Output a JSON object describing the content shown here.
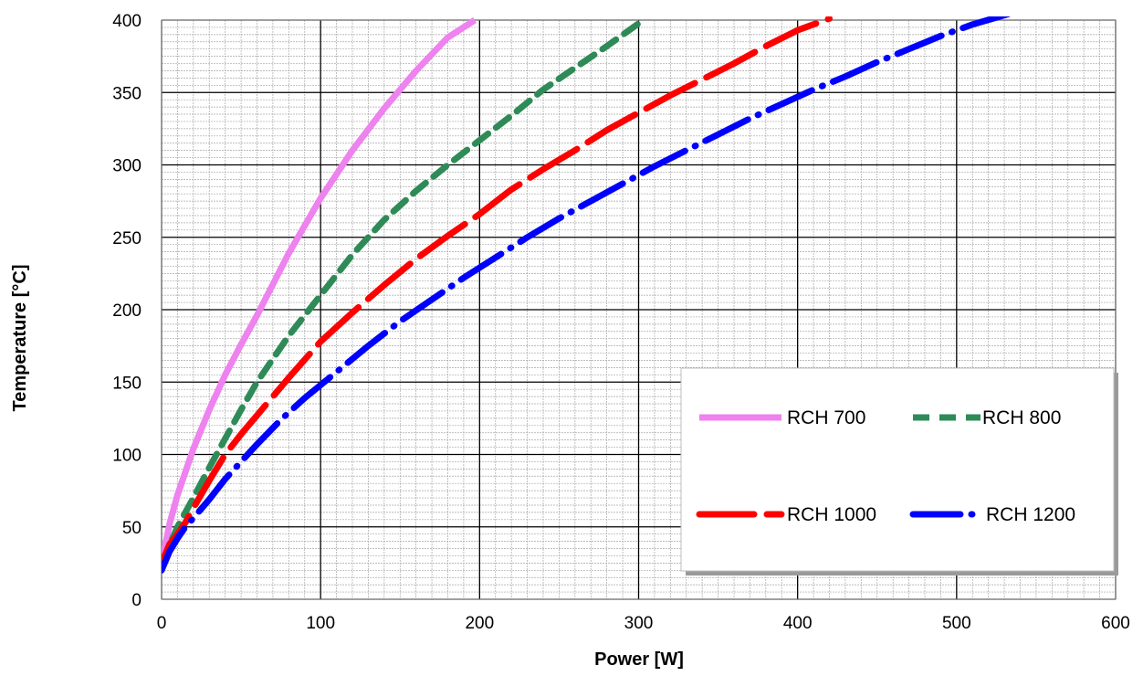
{
  "chart_data": {
    "type": "line",
    "title": "",
    "xlabel": "Power [W]",
    "ylabel": "Temperature [°C]",
    "xlim": [
      0,
      600
    ],
    "ylim": [
      0,
      400
    ],
    "xticks": [
      0,
      100,
      200,
      300,
      400,
      500,
      600
    ],
    "yticks": [
      0,
      50,
      100,
      150,
      200,
      250,
      300,
      350,
      400
    ],
    "grid": "major and minor",
    "legend": "bottom-right",
    "series": [
      {
        "name": "RCH 700",
        "color": "#ee82ee",
        "style": "solid",
        "x": [
          0,
          5,
          10,
          20,
          30,
          40,
          50,
          60,
          80,
          100,
          120,
          140,
          160,
          180,
          197
        ],
        "y": [
          25,
          52,
          72,
          104,
          131,
          155,
          176,
          196,
          239,
          277,
          310,
          339,
          365,
          388,
          400
        ]
      },
      {
        "name": "RCH 800",
        "color": "#2e8b57",
        "style": "dashed",
        "x": [
          0,
          10,
          20,
          30,
          40,
          50,
          60,
          80,
          100,
          120,
          140,
          160,
          180,
          200,
          220,
          240,
          260,
          280,
          303
        ],
        "y": [
          25,
          50,
          70,
          91,
          111,
          131,
          150,
          182,
          210,
          238,
          262,
          282,
          300,
          317,
          334,
          352,
          367,
          382,
          400
        ]
      },
      {
        "name": "RCH 1000",
        "color": "#ff0000",
        "style": "long-dash",
        "x": [
          0,
          5,
          10,
          15,
          20,
          30,
          40,
          50,
          60,
          80,
          100,
          120,
          140,
          160,
          180,
          200,
          220,
          240,
          260,
          280,
          300,
          320,
          340,
          360,
          380,
          400,
          420
        ],
        "y": [
          25,
          38,
          45,
          53,
          63,
          82,
          100,
          114,
          127,
          153,
          178,
          198,
          217,
          235,
          251,
          266,
          283,
          297,
          310,
          324,
          336,
          348,
          359,
          370,
          382,
          393,
          401
        ]
      },
      {
        "name": "RCH 1200",
        "color": "#0000ff",
        "style": "dash-dot",
        "x": [
          0,
          5,
          10,
          15,
          20,
          30,
          40,
          50,
          60,
          75,
          90,
          110,
          130,
          150,
          170,
          190,
          210,
          230,
          250,
          270,
          290,
          310,
          330,
          350,
          370,
          390,
          410,
          430,
          450,
          470,
          490,
          510,
          535
        ],
        "y": [
          20,
          33,
          42,
          50,
          56,
          69,
          83,
          95,
          107,
          124,
          139,
          157,
          175,
          192,
          207,
          222,
          236,
          250,
          263,
          275,
          287,
          299,
          310,
          321,
          332,
          342,
          352,
          361,
          371,
          380,
          389,
          397,
          405
        ]
      }
    ]
  }
}
